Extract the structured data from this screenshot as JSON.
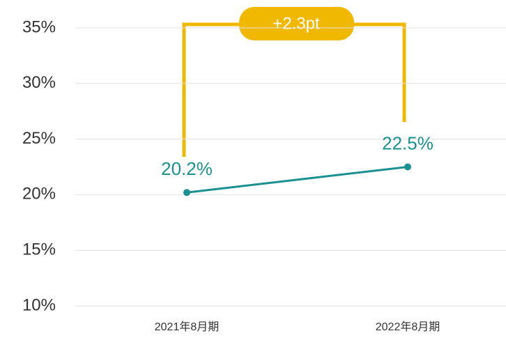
{
  "chart_data": {
    "type": "line",
    "categories": [
      "2021年8月期",
      "2022年8月期"
    ],
    "series": [
      {
        "name": null,
        "color": "#1a9090",
        "values": [
          20.2,
          22.5
        ],
        "value_labels": [
          "20.2%",
          "22.5%"
        ]
      }
    ],
    "ylim": [
      10,
      35
    ],
    "yticks": [
      {
        "value": 10,
        "label": "10%"
      },
      {
        "value": 15,
        "label": "15%"
      },
      {
        "value": 20,
        "label": "20%"
      },
      {
        "value": 25,
        "label": "25%"
      },
      {
        "value": 30,
        "label": "30%"
      },
      {
        "value": 35,
        "label": "35%"
      }
    ],
    "grid": true,
    "annotation": "+2.3pt",
    "annotation_color": "#f0b800"
  }
}
